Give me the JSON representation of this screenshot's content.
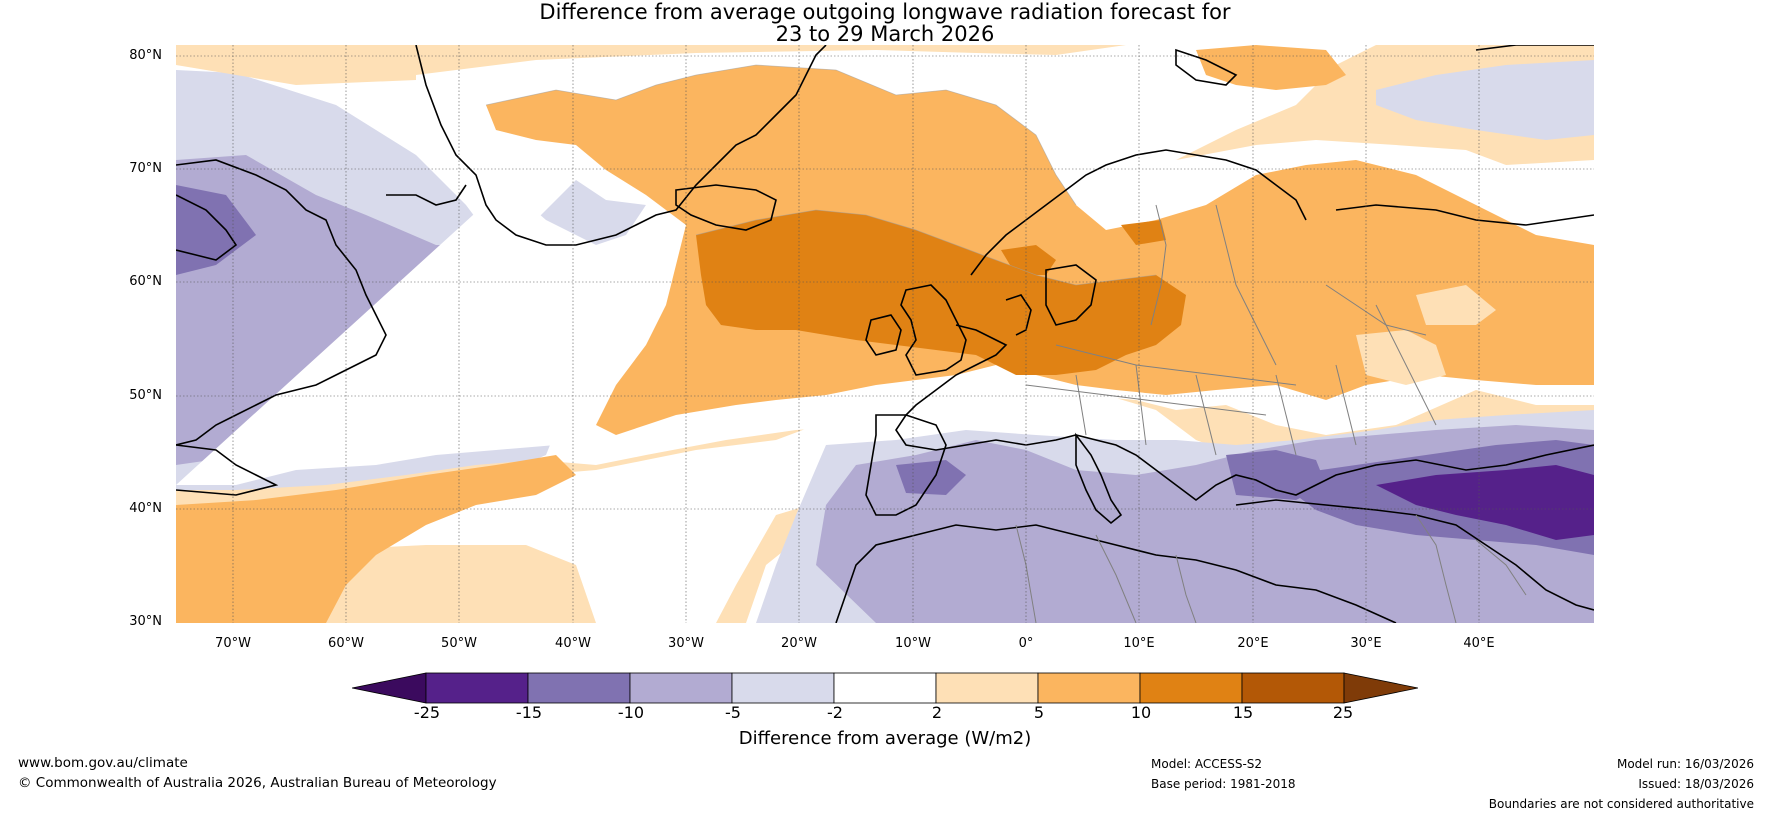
{
  "title": {
    "line1": "Difference from average outgoing longwave radiation forecast for",
    "line2": "23 to 29 March 2026"
  },
  "map": {
    "latitude_labels": [
      "80°N",
      "70°N",
      "60°N",
      "50°N",
      "40°N",
      "30°N"
    ],
    "longitude_labels": [
      "70°W",
      "60°W",
      "50°W",
      "40°W",
      "30°W",
      "20°W",
      "10°W",
      "0°",
      "10°E",
      "20°E",
      "30°E",
      "40°E"
    ],
    "layer_names": [
      "anomaly-fill",
      "coastlines",
      "country-borders",
      "graticule"
    ]
  },
  "colorbar": {
    "label": "Difference from average (W/m2)",
    "ticks": [
      "-25",
      "-15",
      "-10",
      "-5",
      "-2",
      "2",
      "5",
      "10",
      "15",
      "25"
    ],
    "bins": [
      {
        "name": "below -25",
        "color": "#3b0a5e"
      },
      {
        "name": "-25 to -15",
        "color": "#55218a"
      },
      {
        "name": "-15 to -10",
        "color": "#8072b1"
      },
      {
        "name": "-10 to -5",
        "color": "#b2abd2"
      },
      {
        "name": "-5 to -2",
        "color": "#d8daeb"
      },
      {
        "name": "-2 to 2",
        "color": "#ffffff"
      },
      {
        "name": "2 to 5",
        "color": "#fee0b6"
      },
      {
        "name": "5 to 10",
        "color": "#fbb55f"
      },
      {
        "name": "10 to 15",
        "color": "#e08214"
      },
      {
        "name": "15 to 25",
        "color": "#b35806"
      },
      {
        "name": "above 25",
        "color": "#7f3b08"
      }
    ]
  },
  "footer": {
    "url": "www.bom.gov.au/climate",
    "copyright": "© Commonwealth of Australia 2026, Australian Bureau of Meteorology",
    "model": "Model: ACCESS-S2",
    "base_period": "Base period: 1981-2018",
    "model_run": "Model run: 16/03/2026",
    "issued": "Issued: 18/03/2026",
    "disclaimer": "Boundaries are not considered authoritative"
  }
}
